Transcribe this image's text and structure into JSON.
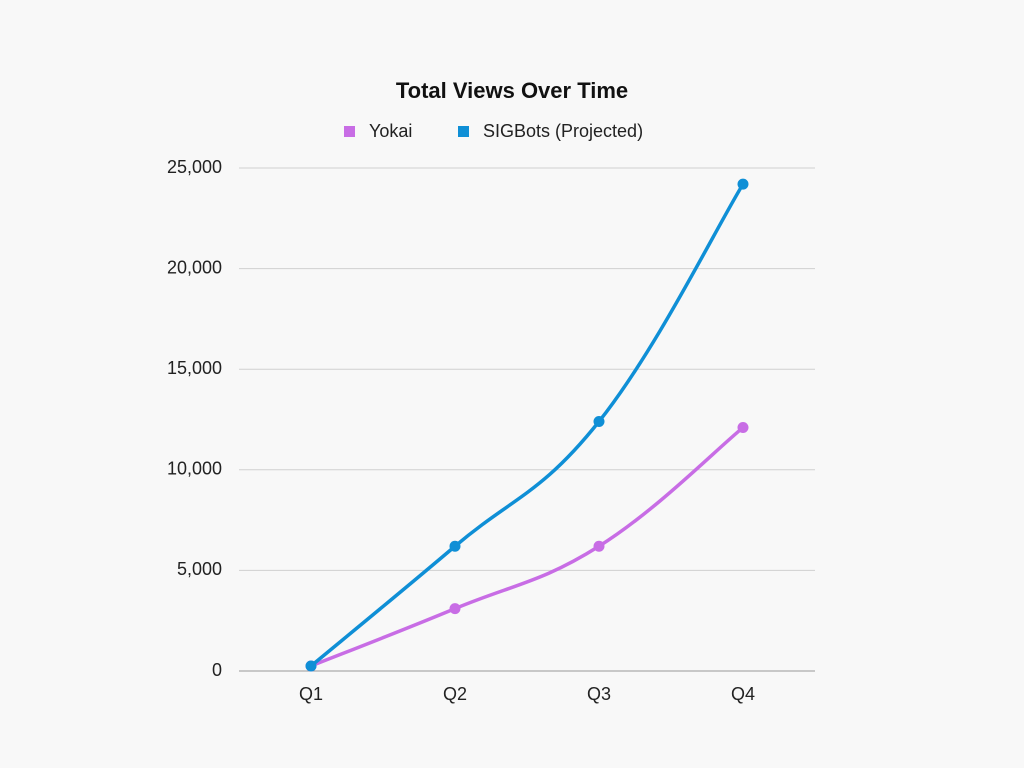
{
  "chart_data": {
    "type": "line",
    "title": "Total Views Over Time",
    "categories": [
      "Q1",
      "Q2",
      "Q3",
      "Q4"
    ],
    "series": [
      {
        "name": "Yokai",
        "color": "#c86de5",
        "values": [
          250,
          3100,
          6200,
          12100
        ]
      },
      {
        "name": "SIGBots (Projected)",
        "color": "#0f8fd6",
        "values": [
          250,
          6200,
          12400,
          24200
        ]
      }
    ],
    "ylim": [
      0,
      25000
    ],
    "yticks": [
      0,
      {
        "value": 5000,
        "label": "5,000"
      },
      {
        "value": 10000,
        "label": "10,000"
      },
      {
        "value": 15000,
        "label": "15,000"
      },
      {
        "value": 20000,
        "label": "20,000"
      },
      {
        "value": 25000,
        "label": "25,000"
      }
    ],
    "grid": true,
    "legend": "top"
  }
}
